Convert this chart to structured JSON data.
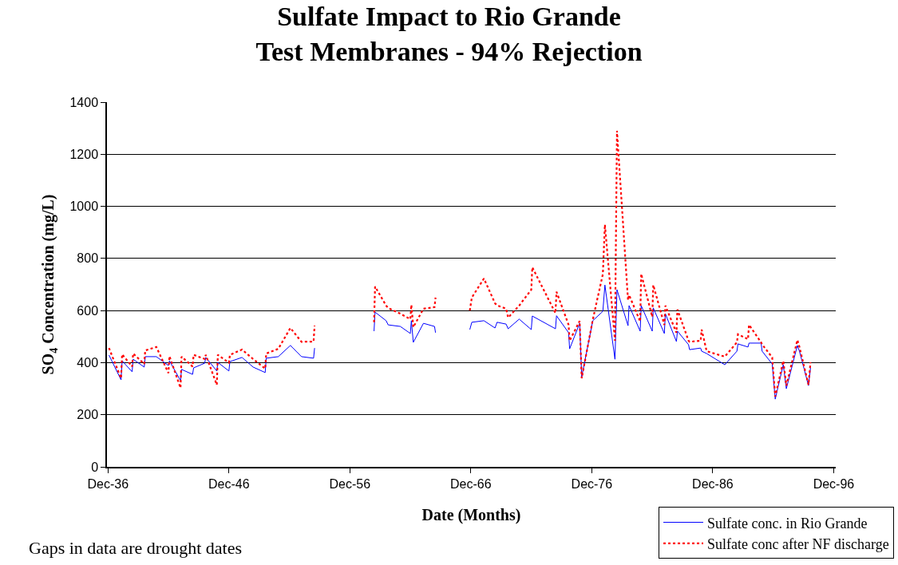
{
  "chart_data": {
    "type": "line",
    "title": "Sulfate Impact to Rio Grande\nTest Membranes - 94% Rejection",
    "xlabel": "Date (Months)",
    "ylabel": "SO$_{4}$ Concentration (mg/L)",
    "annotations": [
      "Gaps in data are drought dates"
    ],
    "x": [
      "1937-01",
      "1938-01",
      "1938-02",
      "1938-12",
      "1939-01",
      "1939-12",
      "1940-01",
      "1940-12",
      "1941-12",
      "1942-01",
      "1942-12",
      "1943-01",
      "1943-12",
      "1944-01",
      "1944-12",
      "1945-01",
      "1945-12",
      "1946-01",
      "1946-12",
      "1947-01",
      "1948-01",
      "1948-12",
      "1949-12",
      "1950-01",
      "1951-01",
      "1952-01",
      "1952-12",
      "1953-12",
      "1954-01",
      "1956-01",
      "1958-12",
      "1959-01",
      "1959-12",
      "1960-02",
      "1961-02",
      "1961-12",
      "1962-01",
      "1962-03",
      "1963-01",
      "1963-12",
      "1964-01",
      "1965-06",
      "1966-11",
      "1967-01",
      "1968-01",
      "1968-12",
      "1969-02",
      "1969-11",
      "1970-01",
      "1970-12",
      "1971-12",
      "1972-01",
      "1973-12",
      "1974-01",
      "1975-01",
      "1975-02",
      "1975-12",
      "1976-02",
      "1977-01",
      "1977-11",
      "1978-01",
      "1978-11",
      "1979-01",
      "1979-12",
      "1980-01",
      "1980-12",
      "1981-01",
      "1981-12",
      "1982-01",
      "1982-12",
      "1983-01",
      "1983-12",
      "1984-01",
      "1984-12",
      "1985-01",
      "1985-12",
      "1986-01",
      "1986-06",
      "1987-12",
      "1988-12",
      "1989-01",
      "1989-11",
      "1989-12",
      "1990-12",
      "1991-01",
      "1991-11",
      "1992-02",
      "1992-10",
      "1993-01",
      "1993-12",
      "1994-02",
      "1994-11",
      "1995-01"
    ],
    "series": [
      {
        "name": "Sulfate conc. in Rio Grande",
        "color": "#0000ff",
        "line_style": "solid",
        "values": [
          429,
          334,
          407,
          365,
          413,
          383,
          423,
          423,
          389,
          407,
          331,
          374,
          355,
          380,
          398,
          420,
          368,
          401,
          368,
          404,
          420,
          383,
          362,
          417,
          423,
          466,
          423,
          417,
          456,
          null,
          521,
          594,
          561,
          545,
          539,
          512,
          561,
          478,
          551,
          539,
          515,
          null,
          527,
          555,
          561,
          533,
          555,
          548,
          530,
          567,
          527,
          579,
          530,
          580,
          515,
          453,
          551,
          345,
          561,
          597,
          698,
          413,
          680,
          542,
          619,
          521,
          619,
          521,
          610,
          512,
          588,
          481,
          521,
          469,
          450,
          456,
          444,
          435,
          392,
          444,
          472,
          460,
          475,
          475,
          444,
          395,
          260,
          392,
          300,
          466,
          444,
          312,
          380
        ]
      },
      {
        "name": "Sulfate conc after NF discharge",
        "color": "#ff0000",
        "line_style": "dotted",
        "values": [
          456,
          340,
          432,
          385,
          435,
          395,
          447,
          460,
          360,
          425,
          303,
          423,
          385,
          430,
          414,
          430,
          315,
          430,
          400,
          430,
          450,
          414,
          377,
          435,
          453,
          533,
          480,
          481,
          542,
          null,
          555,
          692,
          619,
          610,
          588,
          567,
          622,
          536,
          607,
          613,
          650,
          null,
          600,
          650,
          723,
          628,
          620,
          607,
          573,
          619,
          680,
          766,
          590,
          672,
          545,
          484,
          560,
          340,
          565,
          740,
          930,
          484,
          1290,
          640,
          660,
          558,
          741,
          576,
          698,
          545,
          619,
          515,
          604,
          484,
          480,
          484,
          527,
          444,
          423,
          478,
          509,
          490,
          545,
          478,
          470,
          420,
          270,
          407,
          312,
          487,
          460,
          315,
          401
        ]
      }
    ],
    "xlim": [
      "1936-11",
      "1997-02"
    ],
    "xticks": [
      {
        "value": "1936-12",
        "label": "Dec-36"
      },
      {
        "value": "1946-12",
        "label": "Dec-46"
      },
      {
        "value": "1956-12",
        "label": "Dec-56"
      },
      {
        "value": "1966-12",
        "label": "Dec-66"
      },
      {
        "value": "1976-12",
        "label": "Dec-76"
      },
      {
        "value": "1986-12",
        "label": "Dec-86"
      },
      {
        "value": "1996-12",
        "label": "Dec-96"
      }
    ],
    "ylim": [
      0,
      1400
    ],
    "yticks": [
      0,
      200,
      400,
      600,
      800,
      1000,
      1200,
      1400
    ],
    "grid": "y",
    "legend": "bottom right",
    "marker": "none"
  }
}
